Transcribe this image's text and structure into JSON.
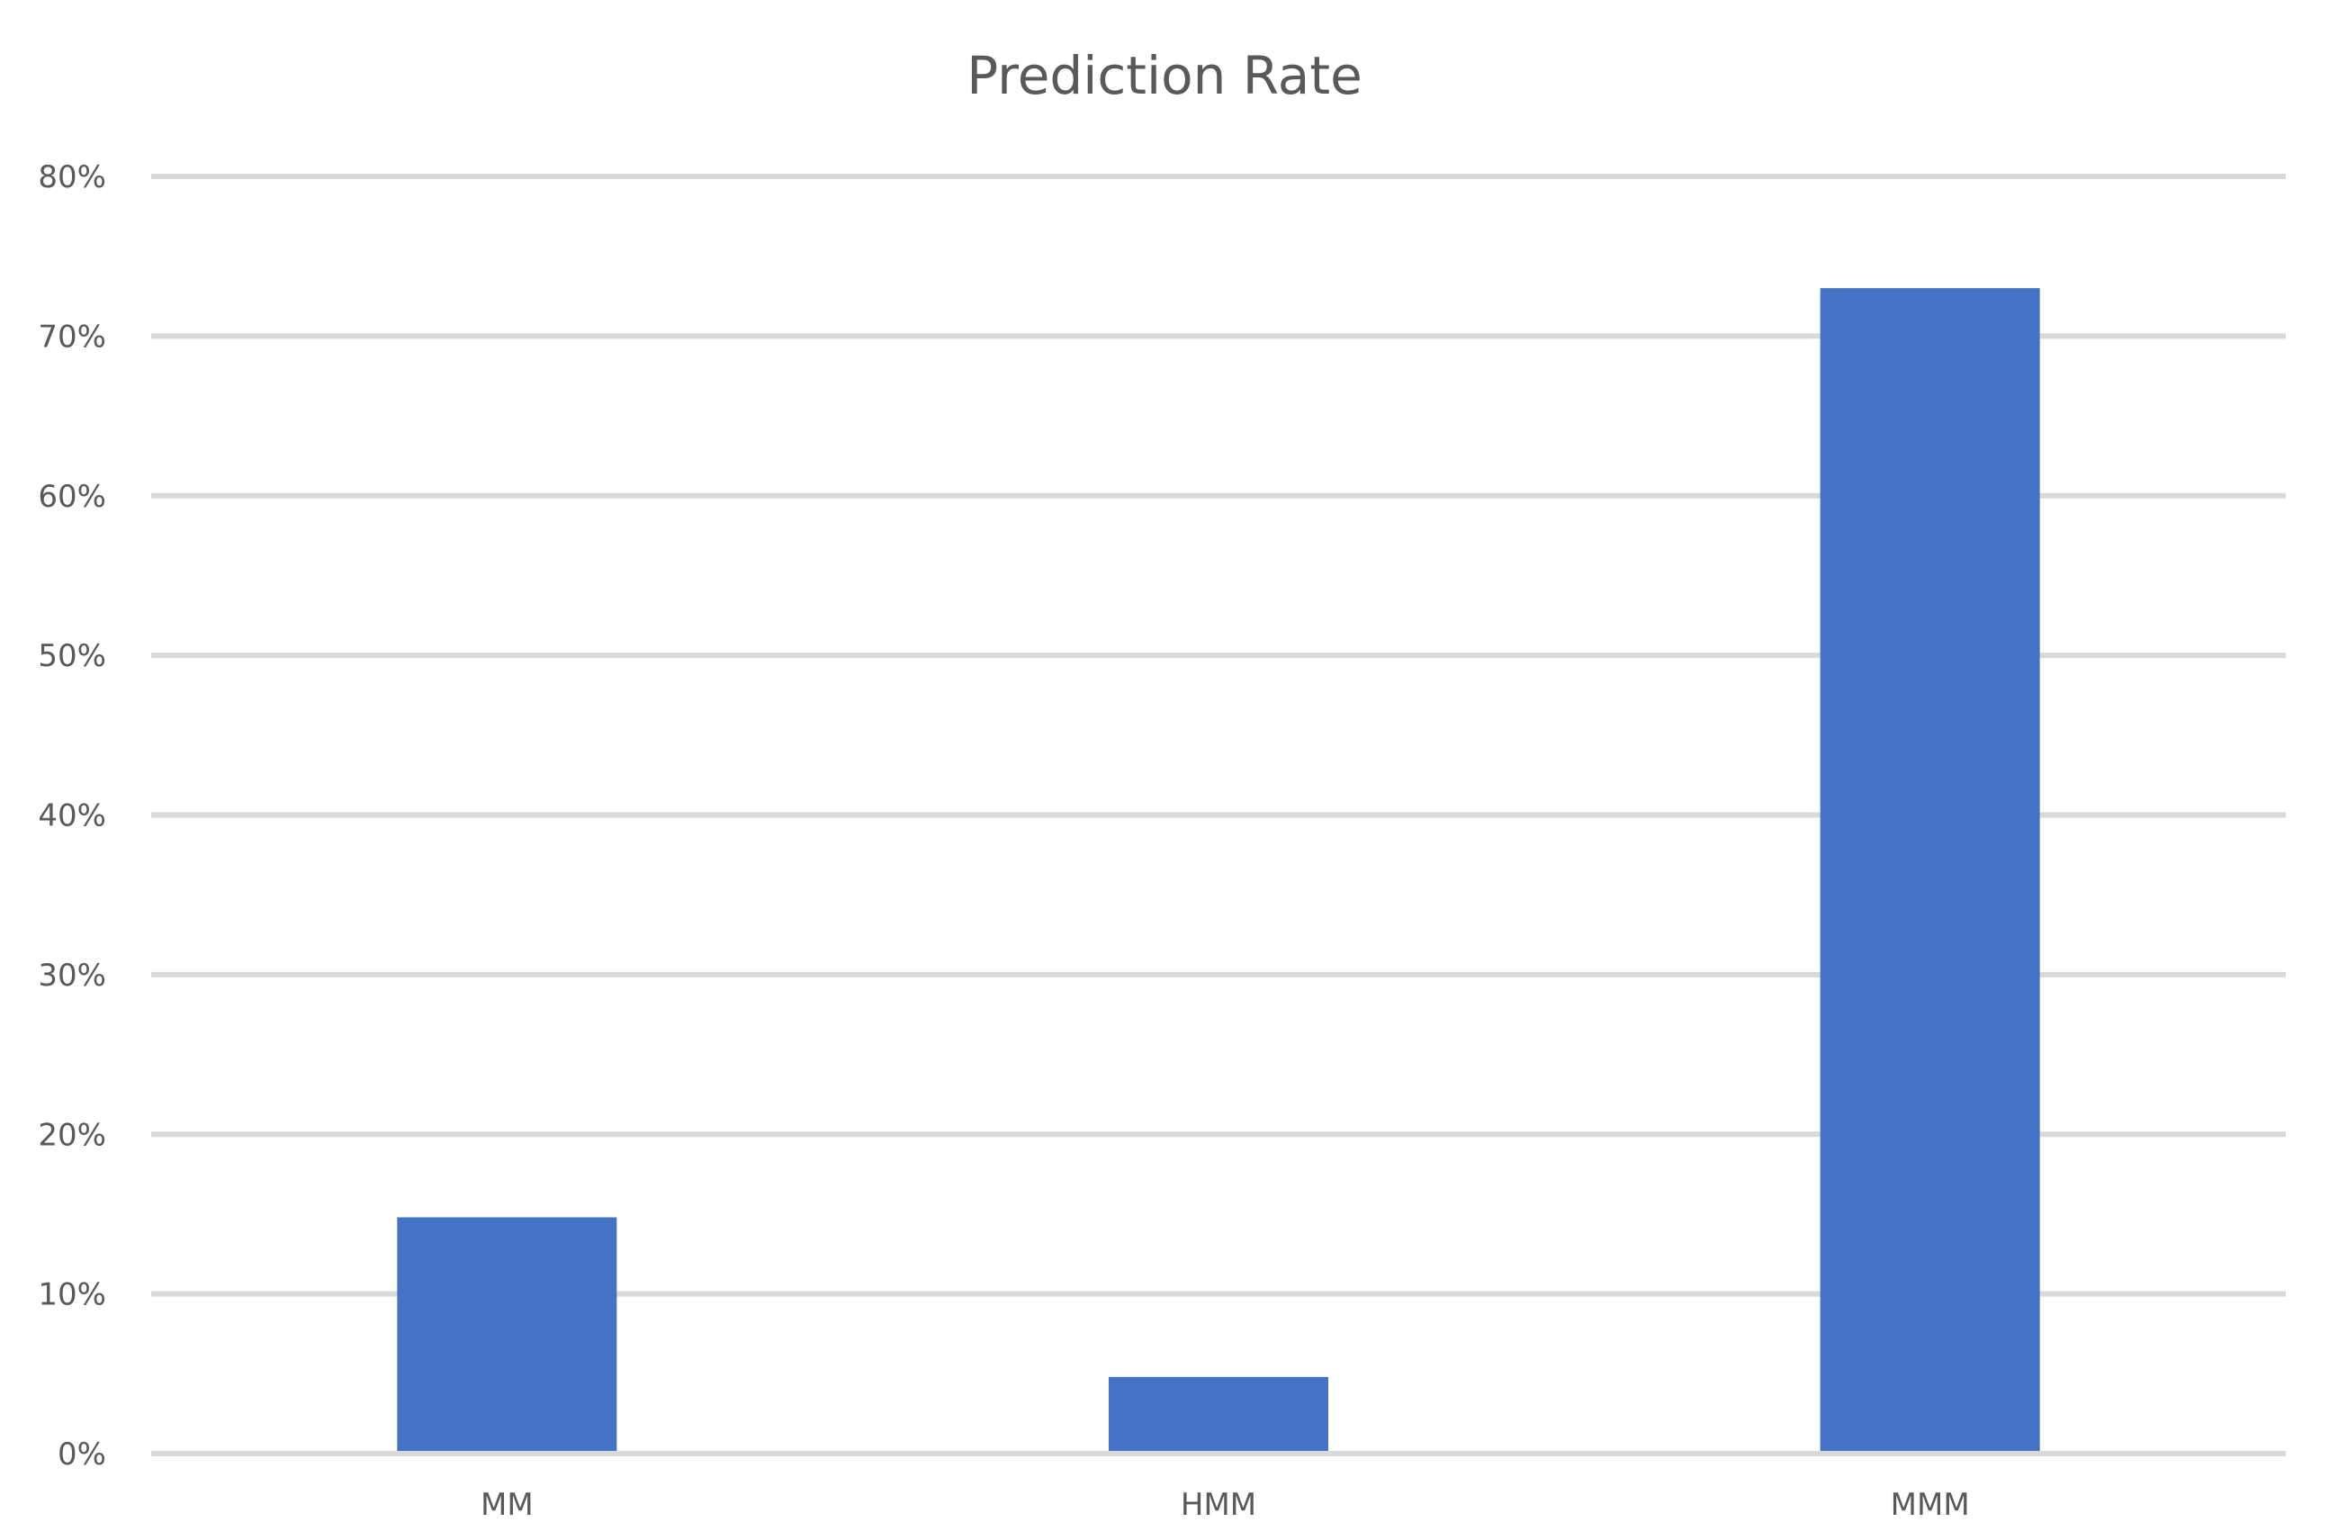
{
  "chart_data": {
    "type": "bar",
    "title": "Prediction Rate",
    "xlabel": "",
    "ylabel": "",
    "categories": [
      "MM",
      "HMM",
      "MMM"
    ],
    "values": [
      0.148,
      0.048,
      0.73
    ],
    "ylim": [
      0,
      0.8
    ],
    "yticks": [
      0,
      0.1,
      0.2,
      0.3,
      0.4,
      0.5,
      0.6,
      0.7,
      0.8
    ],
    "ytick_labels": [
      "0%",
      "10%",
      "20%",
      "30%",
      "40%",
      "50%",
      "60%",
      "70%",
      "80%"
    ],
    "grid": true,
    "legend": "none",
    "colors": {
      "bar": "#4472C4",
      "gridline": "#D9D9D9",
      "text": "#595959",
      "background": "#FFFFFF"
    }
  }
}
